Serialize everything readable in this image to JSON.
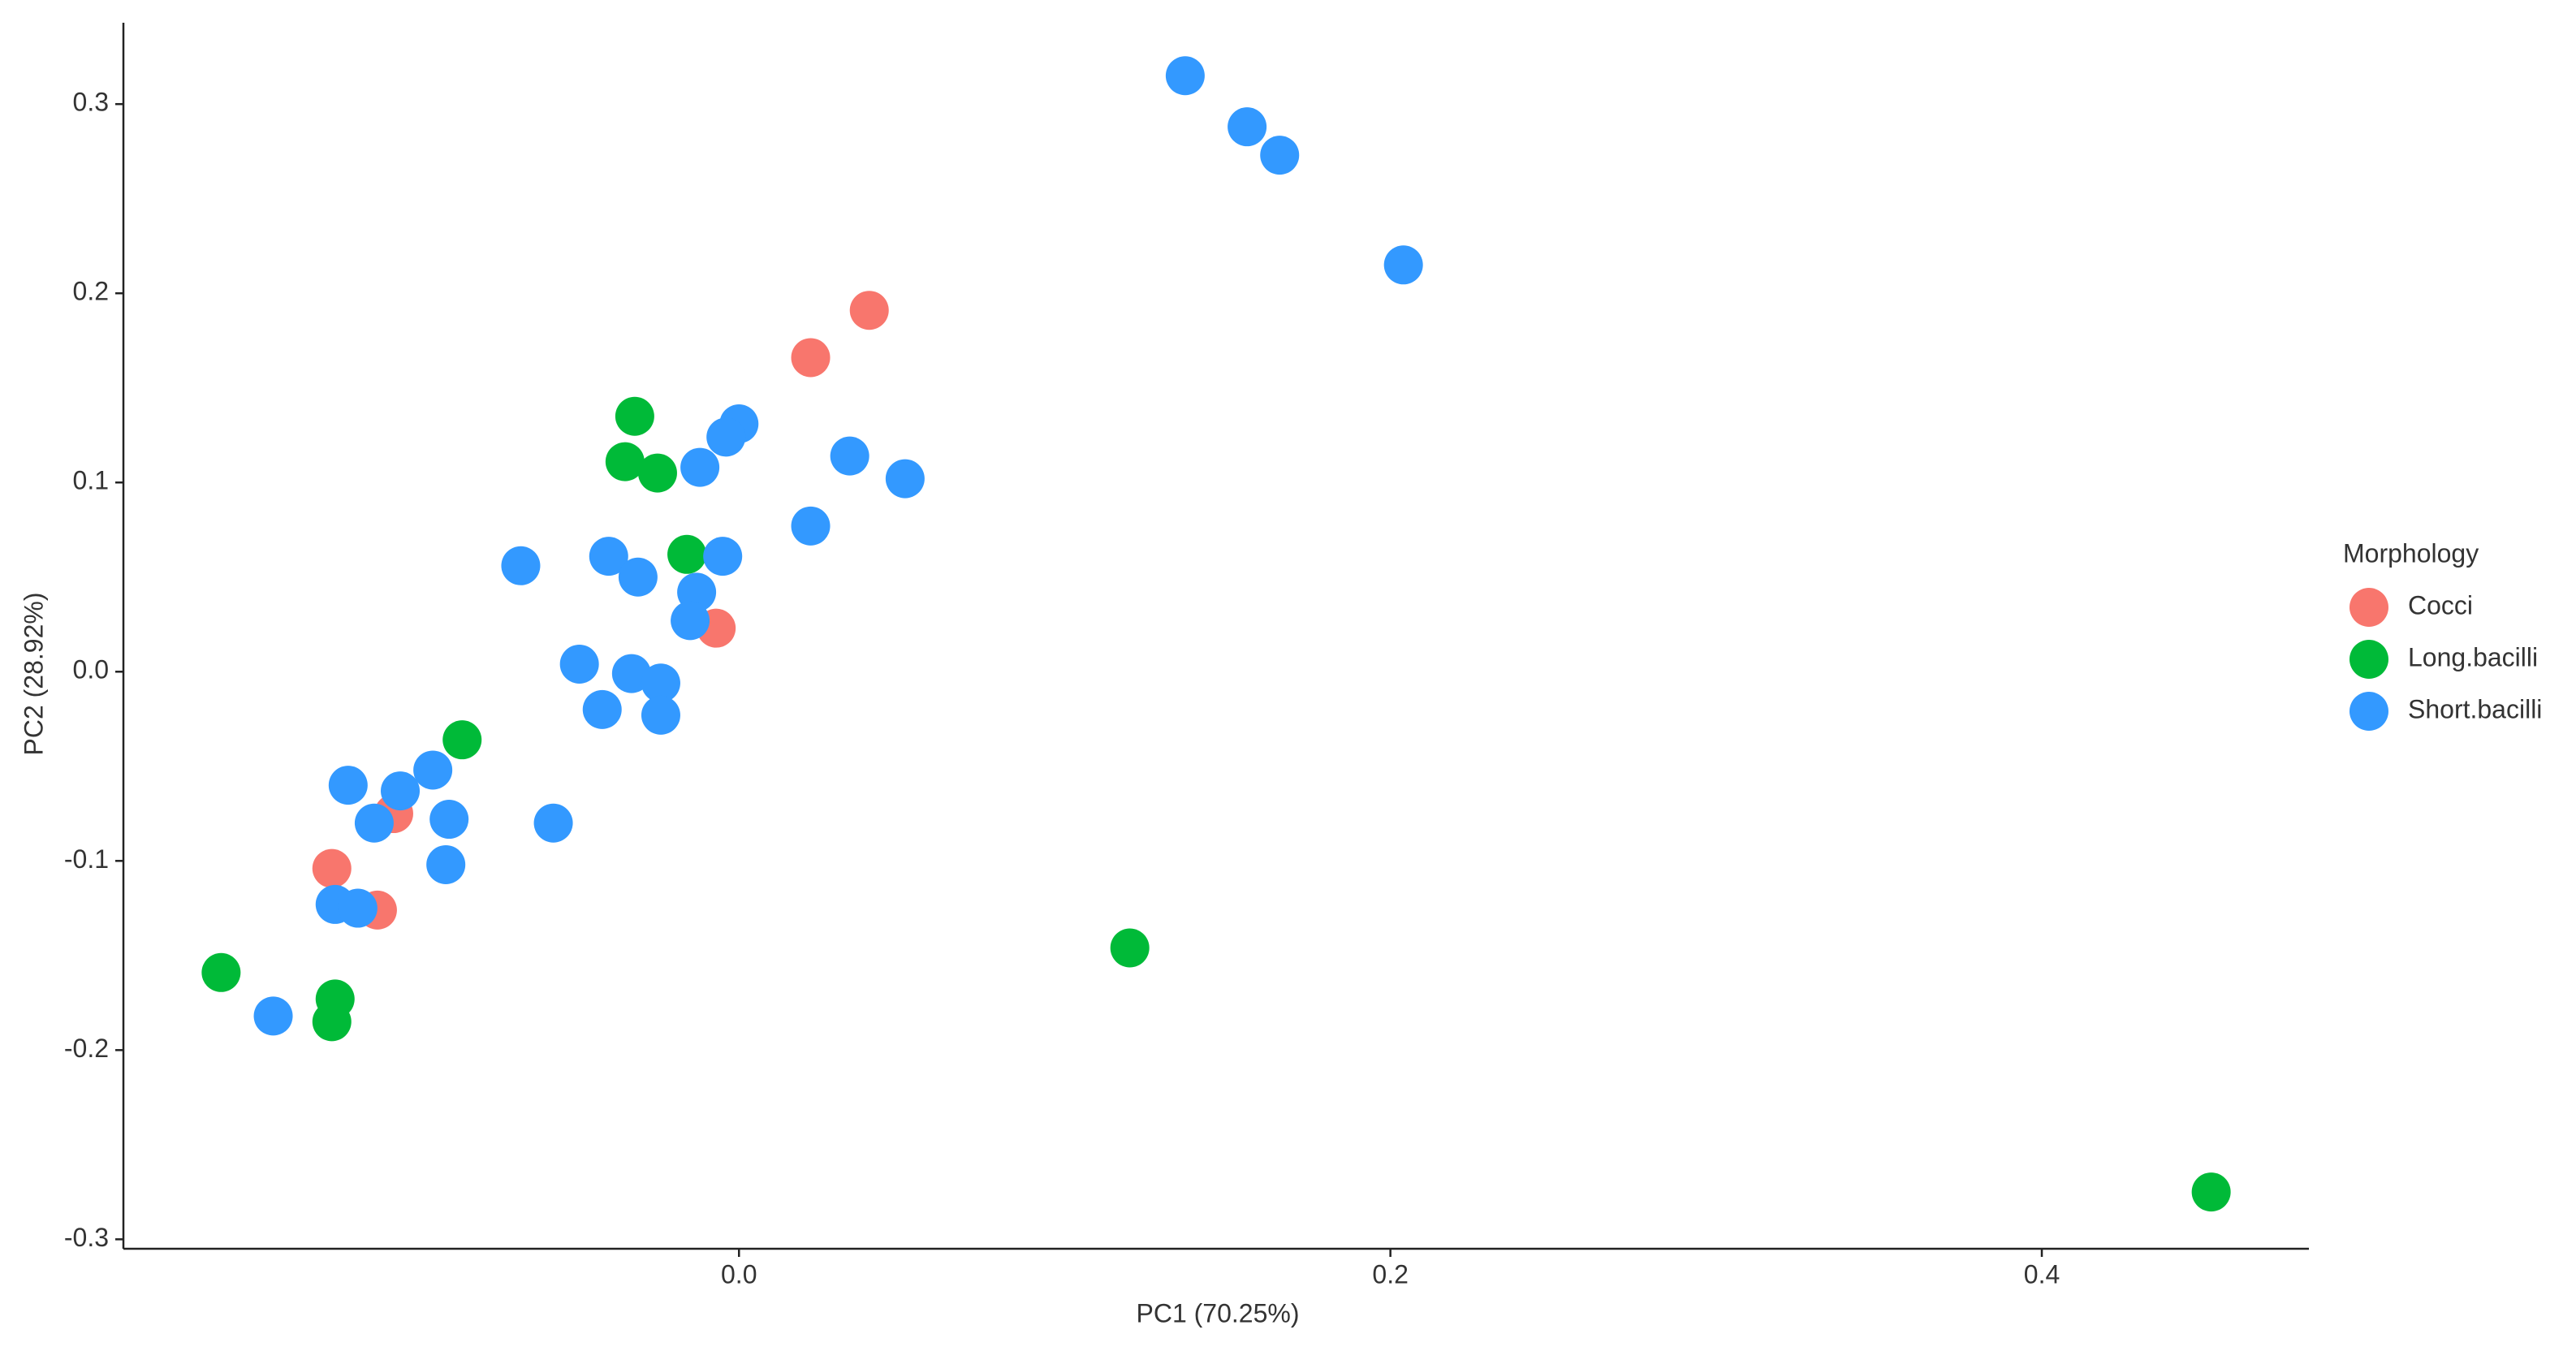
{
  "chart_data": {
    "type": "scatter",
    "x_label": "PC1 (70.25%)",
    "y_label": "PC2 (28.92%)",
    "xlim": [
      -0.189,
      0.482
    ],
    "ylim": [
      -0.305,
      0.343
    ],
    "xticks": [
      {
        "value": 0,
        "label": "0.0"
      },
      0.2,
      0.4
    ],
    "yticks": [
      -0.3,
      -0.2,
      -0.1,
      {
        "value": 0,
        "label": "0.0"
      },
      0.1,
      0.2,
      0.3
    ],
    "grid": false,
    "legend_title": "Morphology",
    "legend_position": "right",
    "series": [
      {
        "name": "Cocci",
        "color": "#f8766d",
        "x": [
          0.04,
          0.022,
          -0.007,
          -0.106,
          -0.125,
          -0.111
        ],
        "y": [
          0.191,
          0.166,
          0.023,
          -0.075,
          -0.104,
          -0.126
        ]
      },
      {
        "name": "Long.bacilli",
        "color": "#00ba38",
        "x": [
          -0.032,
          -0.035,
          -0.025,
          -0.016,
          -0.085,
          -0.159,
          -0.124,
          -0.125,
          0.12,
          0.452
        ],
        "y": [
          0.135,
          0.111,
          0.105,
          0.062,
          -0.036,
          -0.159,
          -0.173,
          -0.185,
          -0.146,
          -0.275
        ]
      },
      {
        "name": "Short.bacilli",
        "color": "#3399ff",
        "x": [
          0.137,
          0.156,
          0.166,
          0.204,
          0.0,
          -0.004,
          -0.012,
          0.034,
          0.051,
          0.022,
          -0.067,
          -0.04,
          -0.031,
          -0.005,
          -0.013,
          -0.015,
          -0.049,
          -0.033,
          -0.024,
          -0.042,
          -0.024,
          -0.12,
          -0.104,
          -0.094,
          -0.112,
          -0.089,
          -0.09,
          -0.057,
          -0.124,
          -0.117,
          -0.143
        ],
        "y": [
          0.315,
          0.288,
          0.273,
          0.215,
          0.131,
          0.124,
          0.108,
          0.114,
          0.102,
          0.077,
          0.056,
          0.061,
          0.05,
          0.061,
          0.042,
          0.027,
          0.004,
          -0.001,
          -0.006,
          -0.02,
          -0.023,
          -0.06,
          -0.063,
          -0.052,
          -0.08,
          -0.078,
          -0.102,
          -0.08,
          -0.123,
          -0.125,
          -0.182
        ]
      }
    ]
  }
}
